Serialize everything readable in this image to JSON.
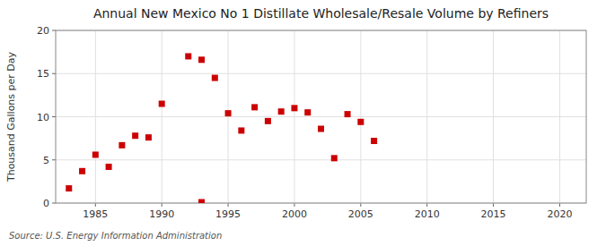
{
  "chart_data": {
    "type": "scatter",
    "title": "Annual New Mexico No 1 Distillate Wholesale/Resale Volume by Refiners",
    "y_label": "Thousand Gallons per Day",
    "source": "Source: U.S. Energy Information Administration",
    "x": [
      1983,
      1984,
      1985,
      1986,
      1987,
      1988,
      1989,
      1990,
      1992,
      1993,
      1994,
      1995,
      1996,
      1997,
      1998,
      1999,
      2000,
      2001,
      2002,
      2003,
      2004,
      2005,
      2006,
      1993
    ],
    "values": [
      1.7,
      3.7,
      5.6,
      4.2,
      6.7,
      7.8,
      7.6,
      11.5,
      17.0,
      16.6,
      14.5,
      10.4,
      8.4,
      11.1,
      9.5,
      10.6,
      11.0,
      10.5,
      8.6,
      5.2,
      10.3,
      9.4,
      7.2,
      0.1
    ],
    "color": "#cc0000",
    "marker": "square",
    "xlim": [
      1982,
      2022
    ],
    "ylim": [
      0,
      20
    ],
    "xticks": [
      1985,
      1990,
      1995,
      2000,
      2005,
      2010,
      2015,
      2020
    ],
    "yticks": [
      0,
      5,
      10,
      15,
      20
    ],
    "grid": true
  }
}
